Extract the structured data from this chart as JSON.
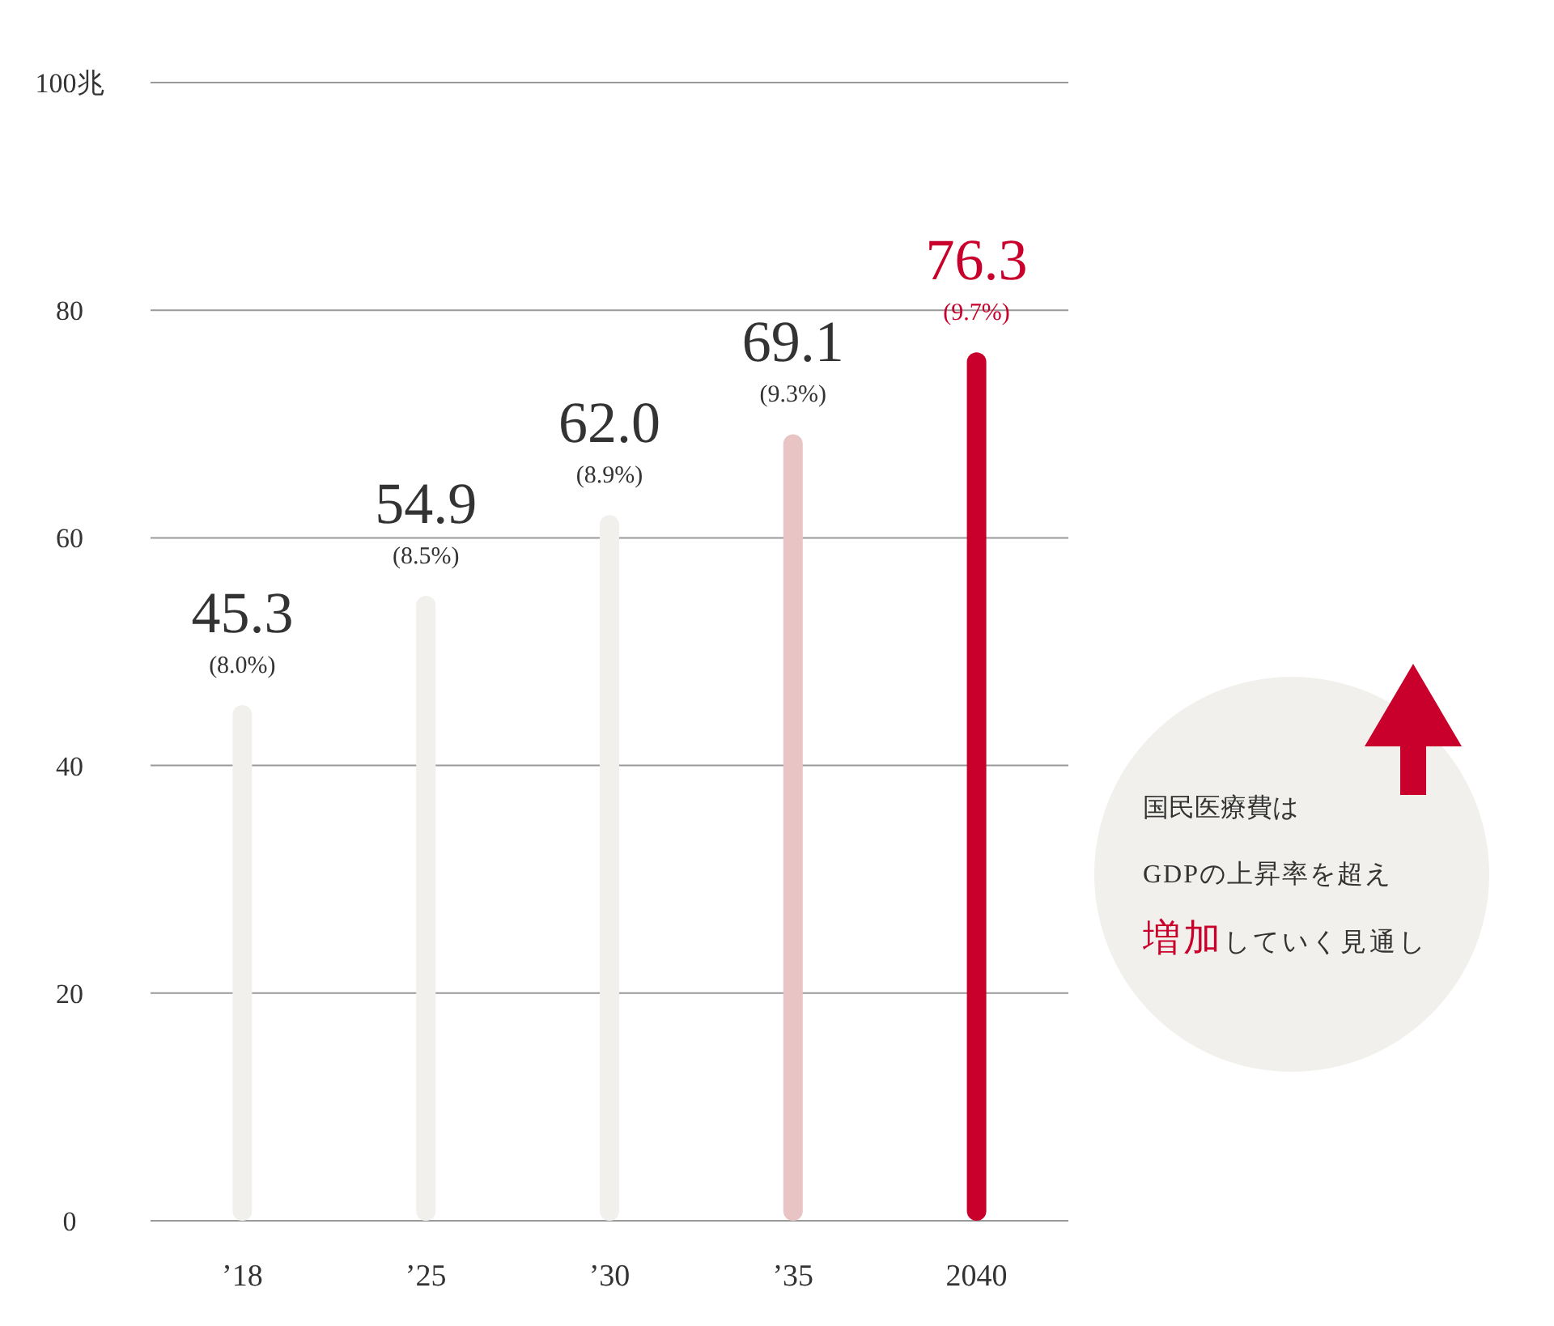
{
  "chart_data": {
    "type": "bar",
    "categories": [
      "’18",
      "’25",
      "’30",
      "’35",
      "2040"
    ],
    "values": [
      45.3,
      54.9,
      62.0,
      69.1,
      76.3
    ],
    "colors": [
      "#f1f0ec",
      "#f1f0ec",
      "#f1f0ec",
      "#e9c4c5",
      "#c8002b"
    ],
    "value_labels": [
      "45.3",
      "54.9",
      "62.0",
      "69.1",
      "76.3"
    ],
    "ylim": [
      0,
      100
    ],
    "yticks": [
      0,
      20,
      40,
      60,
      80,
      {
        "value": 100,
        "label": "100兆"
      }
    ],
    "grid": "y",
    "annotations": [
      {
        "text": "(8.0%)",
        "x": "’18",
        "y": 45.3
      },
      {
        "text": "(8.5%)",
        "x": "’25",
        "y": 54.9
      },
      {
        "text": "(8.9%)",
        "x": "’30",
        "y": 62.0
      },
      {
        "text": "(9.3%)",
        "x": "’35",
        "y": 69.1
      },
      {
        "text": "(9.7%)",
        "x": "2040",
        "y": 76.3
      },
      "国民医療費は",
      "GDPの上昇率を超え",
      "増加",
      "していく見通し"
    ]
  }
}
